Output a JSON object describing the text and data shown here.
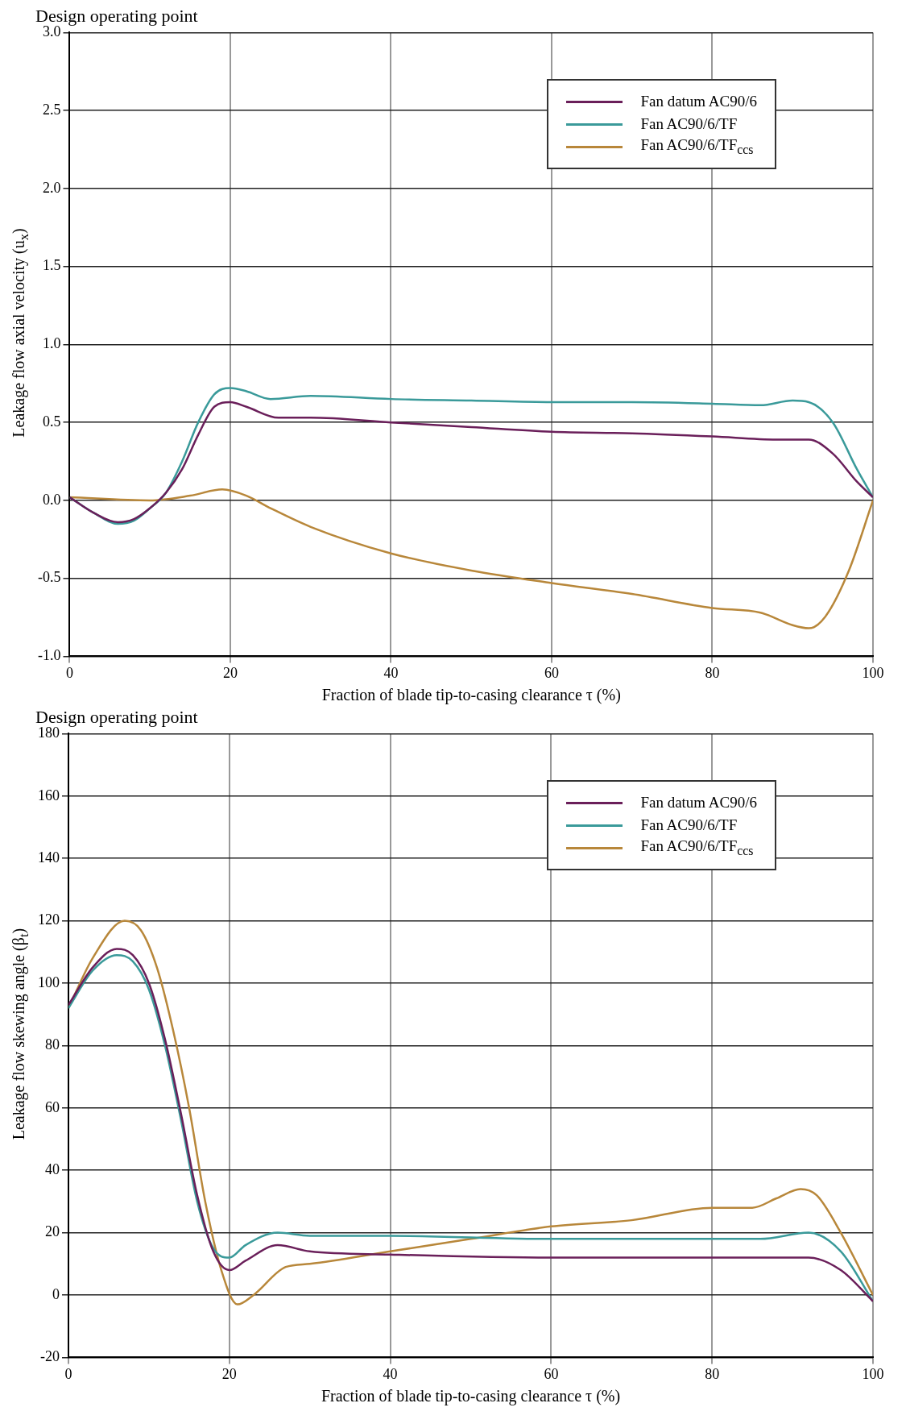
{
  "chart_data": [
    {
      "type": "line",
      "title": "Design operating point",
      "xlabel": "Fraction of blade tip-to-casing clearance τ (%)",
      "ylabel": "Leakage flow axial velocity (u$_{x}$)",
      "xlim": [
        0,
        100
      ],
      "xticks": [
        0,
        20,
        40,
        60,
        80,
        100
      ],
      "ylim": [
        -1,
        3
      ],
      "yticks": [
        {
          "value": -1,
          "label": "-1.0"
        },
        -0.5,
        {
          "value": 0,
          "label": "0.0"
        },
        0.5,
        {
          "value": 1,
          "label": "1.0"
        },
        1.5,
        {
          "value": 2,
          "label": "2.0"
        },
        2.5,
        {
          "value": 3,
          "label": "3.0"
        }
      ],
      "grid": true,
      "legend": "top right",
      "marker": "none",
      "line_style": "solid",
      "series": [
        {
          "name": "Fan datum AC90/6",
          "color": "#6a1f5a",
          "x": [
            0,
            3,
            6,
            8,
            10,
            12,
            14,
            16,
            18,
            20,
            22,
            26,
            30,
            40,
            50,
            60,
            70,
            80,
            88,
            92,
            95,
            98,
            100
          ],
          "values": [
            0.02,
            -0.08,
            -0.14,
            -0.12,
            -0.05,
            0.05,
            0.2,
            0.42,
            0.6,
            0.63,
            0.6,
            0.53,
            0.53,
            0.5,
            0.47,
            0.44,
            0.43,
            0.41,
            0.39,
            0.39,
            0.3,
            0.12,
            0.02
          ]
        },
        {
          "name": "Fan AC90/6/TF",
          "color": "#3a9a9a",
          "x": [
            0,
            3,
            6,
            8,
            10,
            12,
            14,
            16,
            18,
            20,
            22,
            25,
            30,
            40,
            50,
            60,
            70,
            80,
            86,
            90,
            92,
            95,
            98,
            100
          ],
          "values": [
            0.02,
            -0.08,
            -0.15,
            -0.13,
            -0.05,
            0.05,
            0.25,
            0.5,
            0.68,
            0.72,
            0.7,
            0.65,
            0.67,
            0.65,
            0.64,
            0.63,
            0.63,
            0.62,
            0.61,
            0.64,
            0.63,
            0.5,
            0.2,
            0.02
          ]
        },
        {
          "name": "Fan AC90/6/TF$_{ccs}$",
          "color": "#b8873a",
          "x": [
            0,
            10,
            15,
            19,
            22,
            25,
            30,
            40,
            50,
            60,
            70,
            80,
            86,
            90,
            92,
            94,
            97,
            100
          ],
          "values": [
            0.02,
            0,
            0.03,
            0.07,
            0.03,
            -0.05,
            -0.17,
            -0.34,
            -0.45,
            -0.53,
            -0.6,
            -0.69,
            -0.72,
            -0.8,
            -0.82,
            -0.75,
            -0.45,
            0
          ]
        }
      ]
    },
    {
      "type": "line",
      "title": "Design operating point",
      "xlabel": "Fraction of blade tip-to-casing clearance τ (%)",
      "ylabel": "Leakage flow skewing angle (β$_{t}$)",
      "xlim": [
        0,
        100
      ],
      "xticks": [
        0,
        20,
        40,
        60,
        80,
        100
      ],
      "ylim": [
        -20,
        180
      ],
      "yticks": [
        -20,
        0,
        20,
        40,
        60,
        80,
        100,
        120,
        140,
        160,
        180
      ],
      "grid": true,
      "legend": "top right",
      "marker": "none",
      "line_style": "solid",
      "series": [
        {
          "name": "Fan datum AC90/6",
          "color": "#6a1f5a",
          "x": [
            0,
            3,
            6,
            8,
            10,
            12,
            14,
            16,
            18,
            20,
            22,
            26,
            30,
            40,
            60,
            80,
            92,
            96,
            100
          ],
          "values": [
            93,
            105,
            111,
            109,
            100,
            82,
            58,
            32,
            14,
            8,
            11,
            16,
            14,
            13,
            12,
            12,
            12,
            8,
            -2
          ]
        },
        {
          "name": "Fan AC90/6/TF",
          "color": "#3a9a9a",
          "x": [
            0,
            3,
            6,
            8,
            10,
            12,
            14,
            16,
            18,
            20,
            22,
            26,
            30,
            40,
            60,
            80,
            86,
            92,
            96,
            100
          ],
          "values": [
            92,
            104,
            109,
            107,
            98,
            80,
            56,
            30,
            15,
            12,
            16,
            20,
            19,
            19,
            18,
            18,
            18,
            20,
            14,
            -2
          ]
        },
        {
          "name": "Fan AC90/6/TF$_{ccs}$",
          "color": "#b8873a",
          "x": [
            0,
            3,
            7,
            9,
            11,
            13,
            15,
            17,
            19,
            21,
            23,
            27,
            30,
            40,
            50,
            60,
            70,
            80,
            85,
            88,
            91,
            93,
            96,
            100
          ],
          "values": [
            92,
            108,
            120,
            117,
            105,
            85,
            60,
            30,
            8,
            -3,
            0,
            9,
            10,
            14,
            18,
            22,
            24,
            28,
            28,
            31,
            34,
            32,
            20,
            0
          ]
        }
      ]
    }
  ]
}
